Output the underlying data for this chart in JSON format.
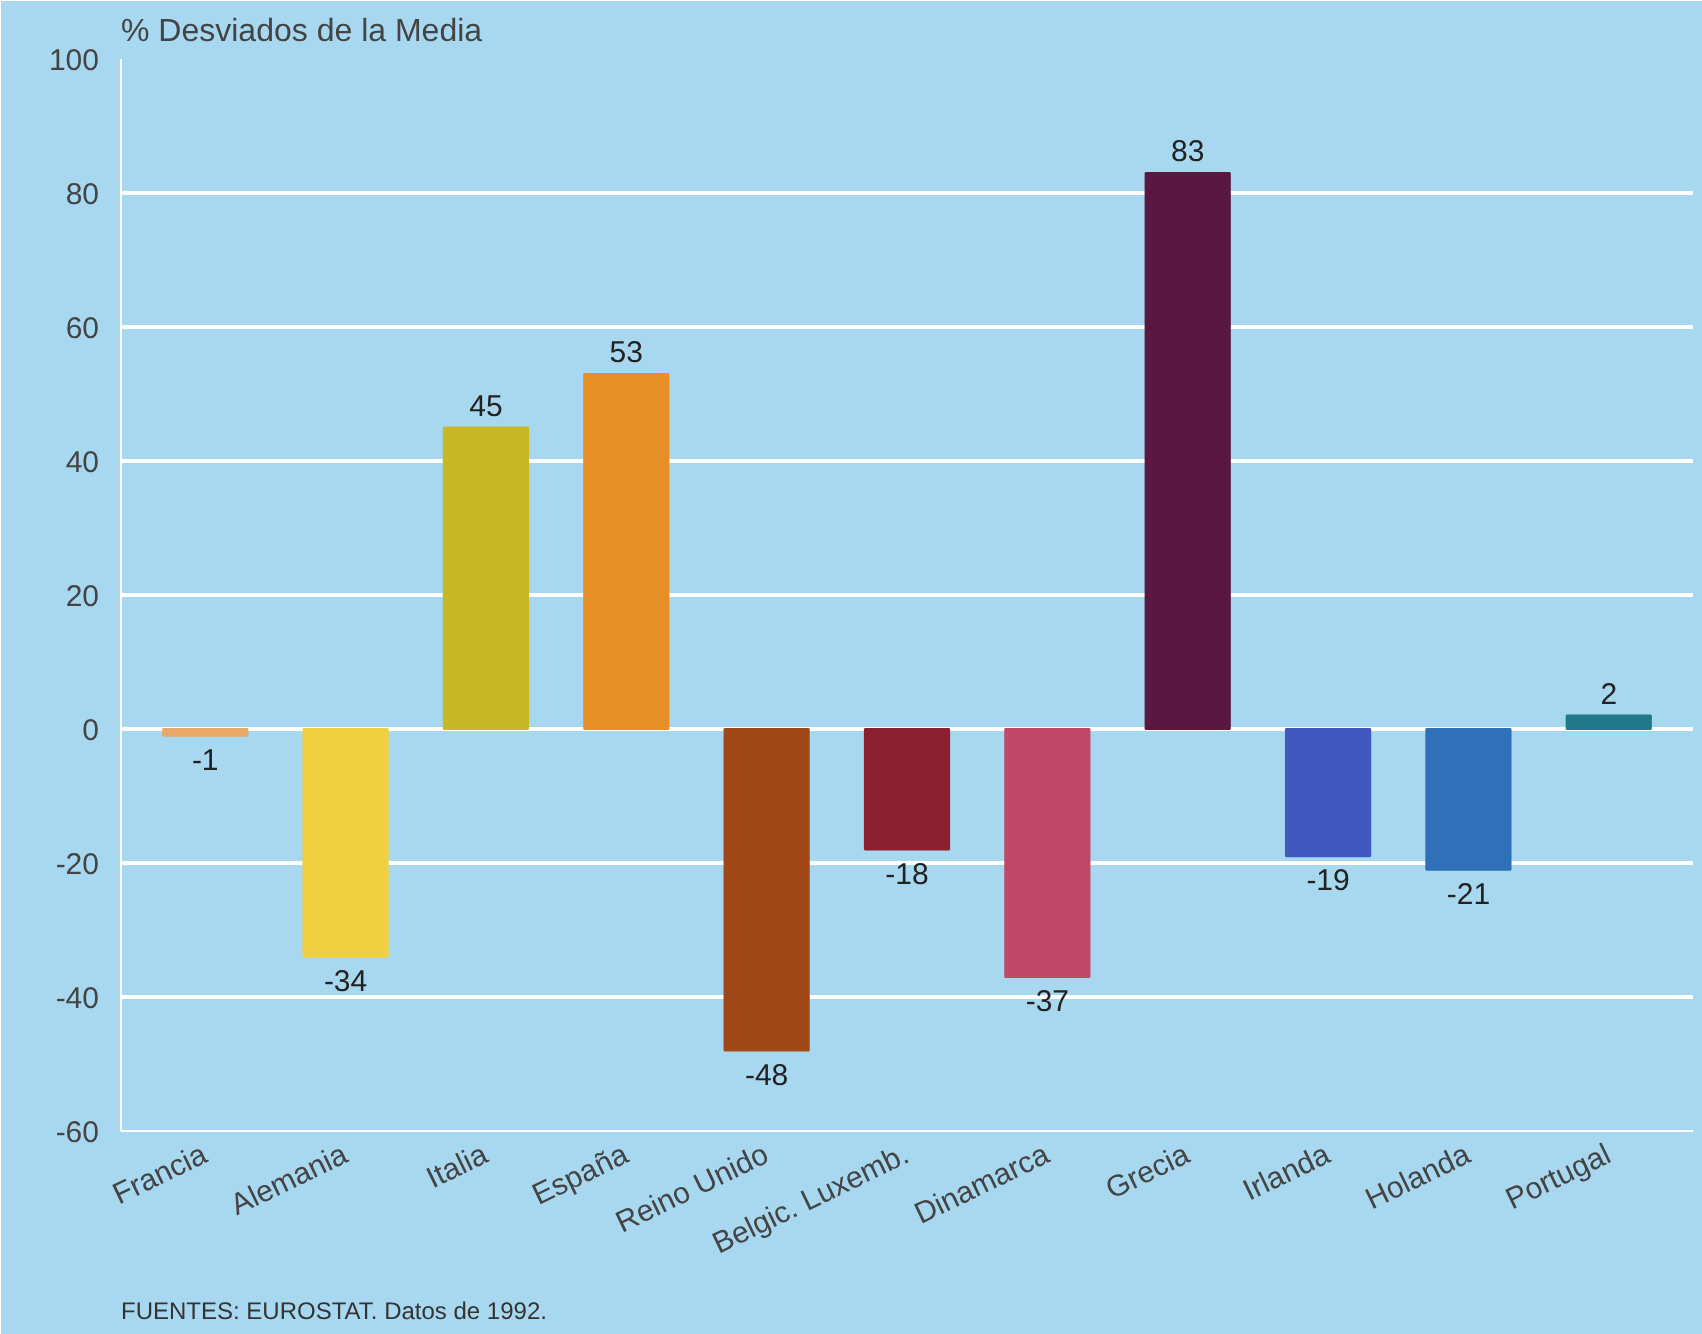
{
  "chart_data": {
    "type": "bar",
    "ylabel": "% Desviados de la Media",
    "categories": [
      "Francia",
      "Alemania",
      "Italia",
      "España",
      "Reino Unido",
      "Belgic. Luxemb.",
      "Dinamarca",
      "Grecia",
      "Irlanda",
      "Holanda",
      "Portugal"
    ],
    "values": [
      -1,
      -34,
      45,
      53,
      -48,
      -18,
      -37,
      83,
      -19,
      -21,
      2
    ],
    "colors": [
      "#e8a868",
      "#f0d040",
      "#c8b828",
      "#e89028",
      "#a04818",
      "#8a2030",
      "#c04868",
      "#5a1840",
      "#4058c0",
      "#3070b8",
      "#207888"
    ],
    "ylim": [
      -60,
      100
    ],
    "yticks": [
      -60,
      -40,
      -20,
      0,
      20,
      40,
      60,
      80,
      100
    ],
    "grid": "y",
    "data_labels": true,
    "annotations": [
      "FUENTES: EUROSTAT. Datos de 1992."
    ]
  }
}
